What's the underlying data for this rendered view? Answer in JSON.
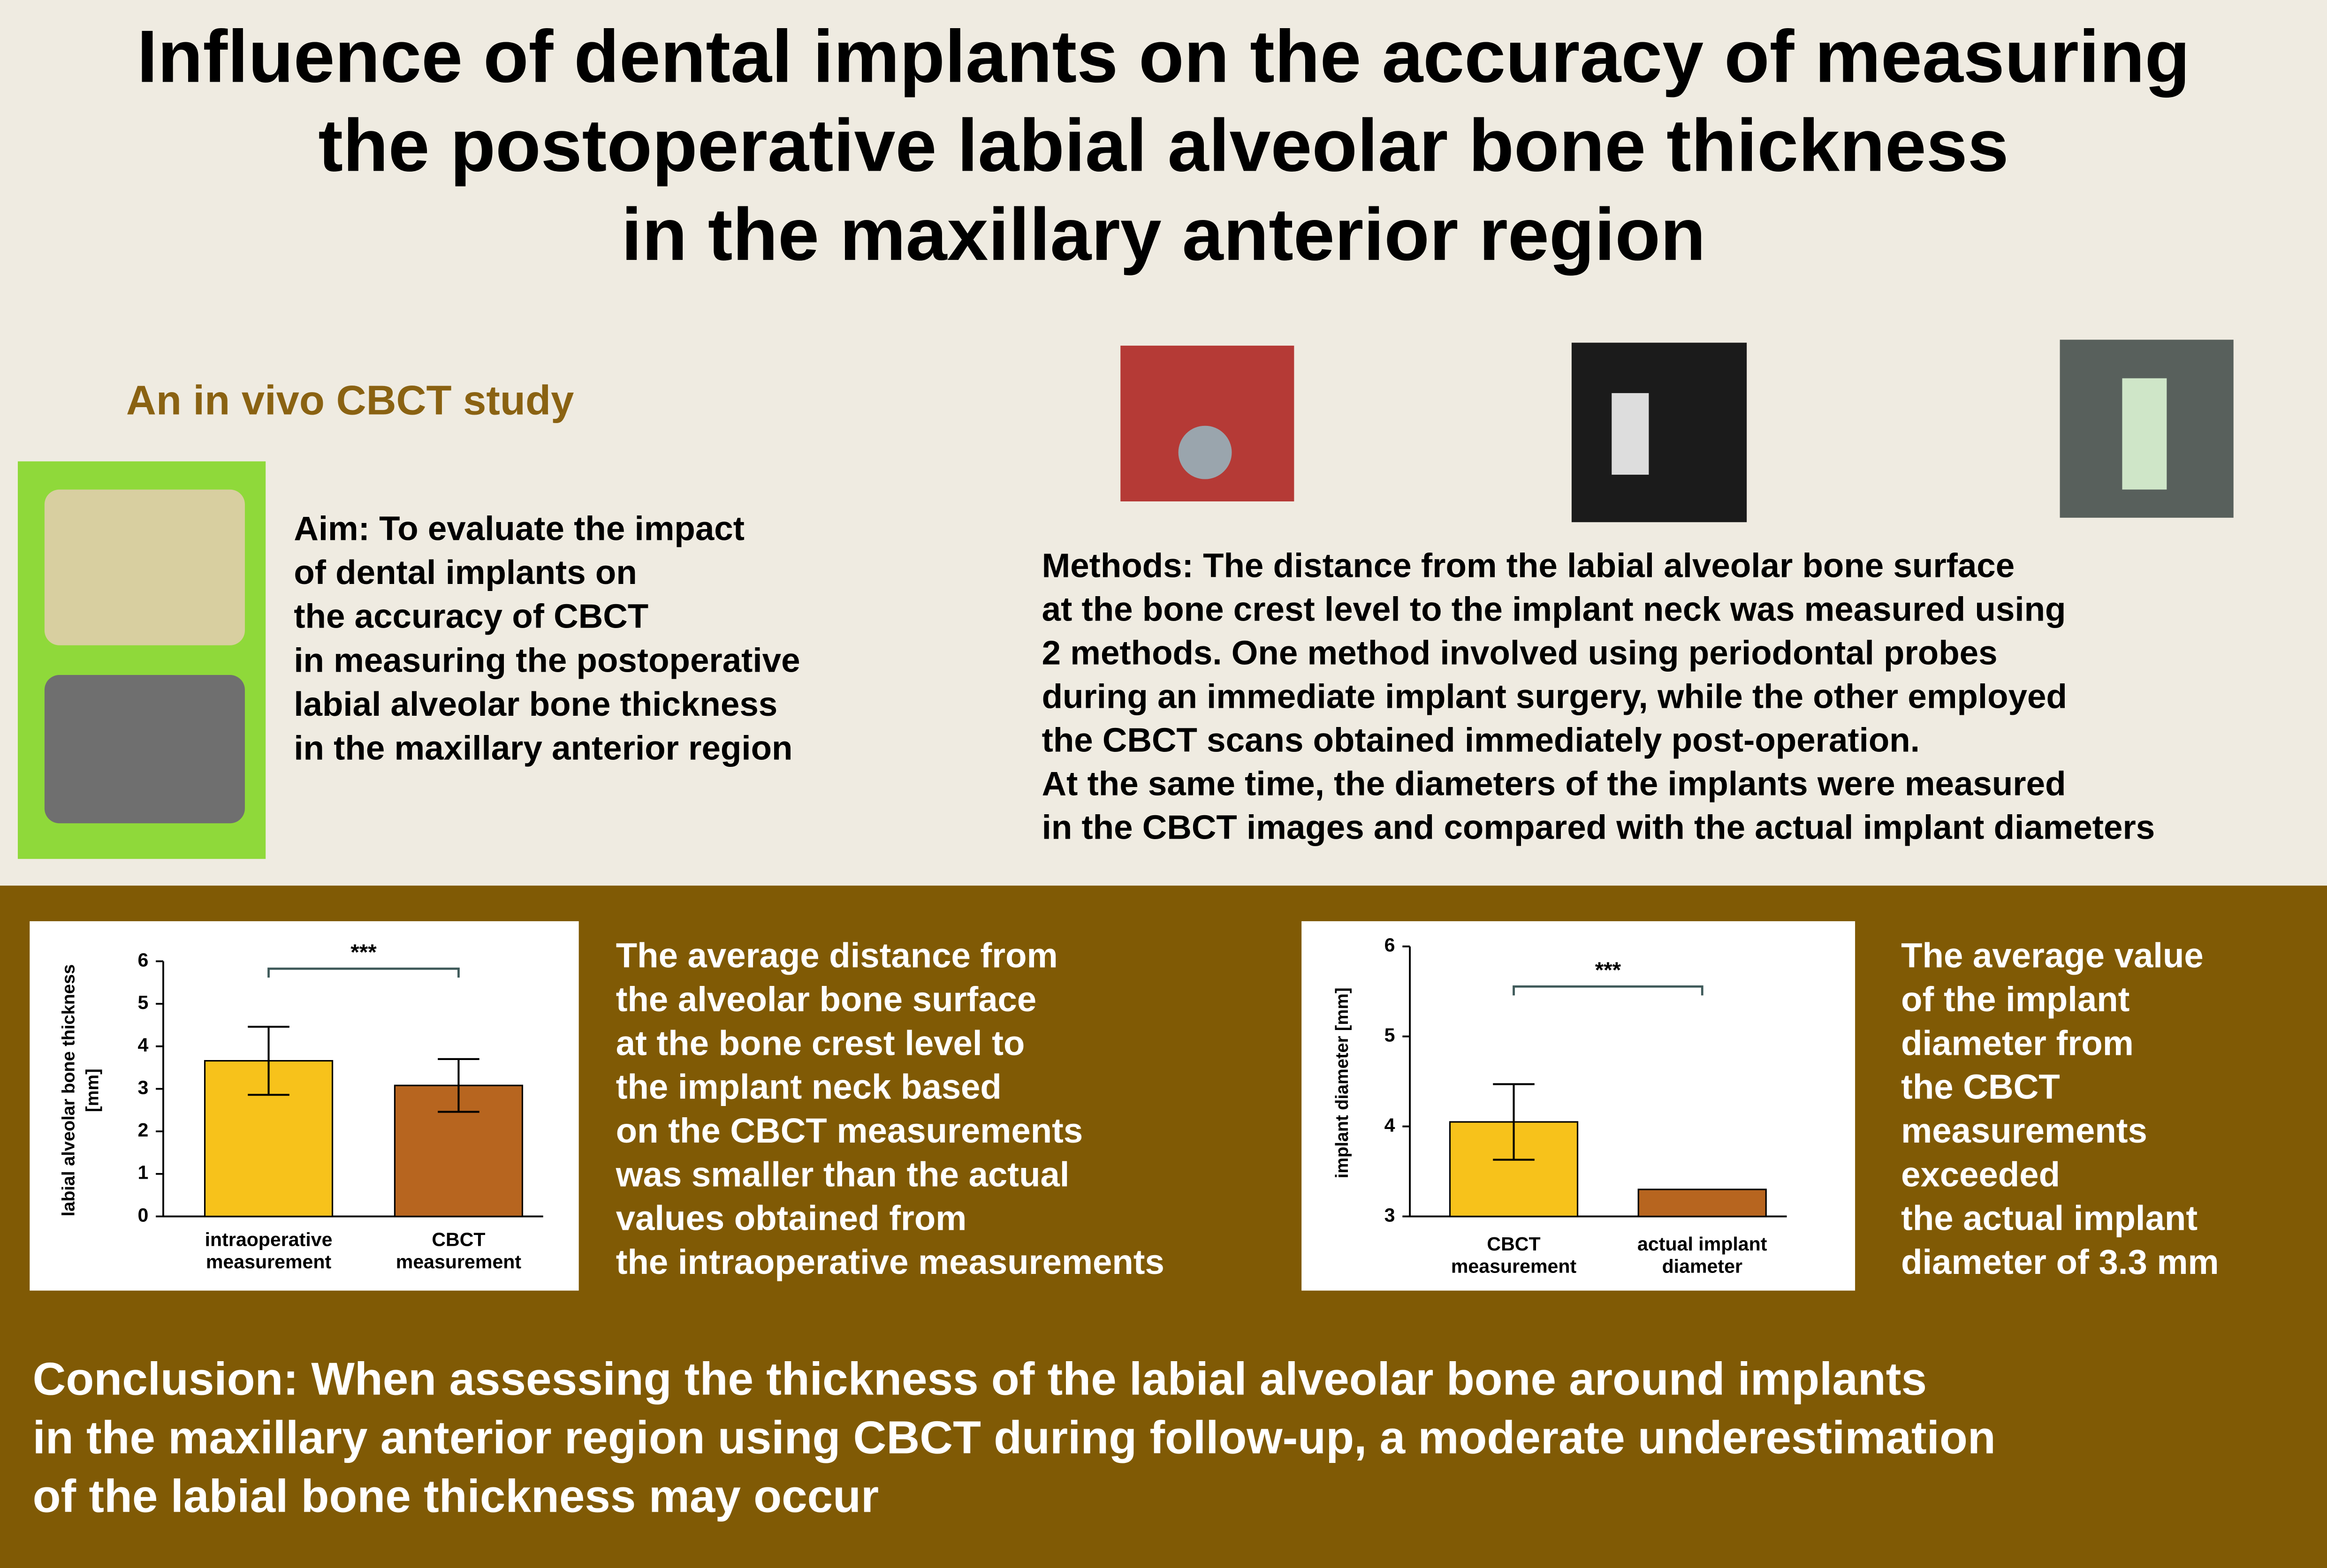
{
  "header": {
    "title": [
      "Influence of dental implants on the accuracy of measuring",
      "the postoperative labial alveolar bone thickness",
      "in the maxillary anterior region"
    ],
    "subtitle": "An in vivo CBCT study"
  },
  "aim": [
    "Aim: To evaluate the impact",
    "of dental implants on",
    "the accuracy of CBCT",
    "in measuring the postoperative",
    "labial alveolar bone thickness",
    "in the maxillary anterior region"
  ],
  "methods": [
    "Methods: The distance from the labial alveolar bone surface",
    "at the bone crest level to the implant neck was measured using",
    "2 methods. One method involved using periodontal probes",
    "during an immediate implant surgery, while the other employed",
    "the CBCT scans obtained immediately post-operation.",
    "At the same time, the diameters of the implants were measured",
    "in the CBCT images and compared with the actual implant diameters"
  ],
  "result_1": [
    "The average distance from",
    "the alveolar bone surface",
    "at the bone crest level to",
    "the implant neck based",
    "on the CBCT measurements",
    "was smaller than the actual",
    "values obtained from",
    "the intraoperative measurements"
  ],
  "result_2": [
    "The average value",
    "of the implant",
    "diameter from",
    "the CBCT",
    "measurements",
    "exceeded",
    "the actual implant",
    "diameter of 3.3 mm"
  ],
  "conclusion": [
    "Conclusion: When assessing the thickness of the labial alveolar bone around implants",
    "in the maxillary anterior region using CBCT during follow-up, a moderate underestimation",
    "of the labial bone thickness may occur"
  ],
  "chart_data": [
    {
      "type": "bar",
      "ylabel": [
        "labial alveolar bone thickness",
        "[mm]"
      ],
      "categories": [
        "intraoperative measurement",
        "CBCT measurement"
      ],
      "values": [
        3.66,
        3.08
      ],
      "errors": [
        0.8,
        0.62
      ],
      "colors": [
        "#f7c21b",
        "#b7651f"
      ],
      "ylim": [
        0,
        6
      ],
      "yticks": [
        0,
        1,
        2,
        3,
        4,
        5,
        6
      ],
      "annotation": "***"
    },
    {
      "type": "bar",
      "ylabel": [
        "implant diameter [mm]"
      ],
      "categories": [
        "CBCT measurement",
        "actual implant diameter"
      ],
      "values": [
        4.05,
        3.3
      ],
      "errors": [
        0.42,
        null
      ],
      "colors": [
        "#f7c21b",
        "#b7651f"
      ],
      "ylim": [
        3,
        6
      ],
      "yticks": [
        3,
        4,
        5,
        6
      ],
      "annotation": "***"
    }
  ]
}
